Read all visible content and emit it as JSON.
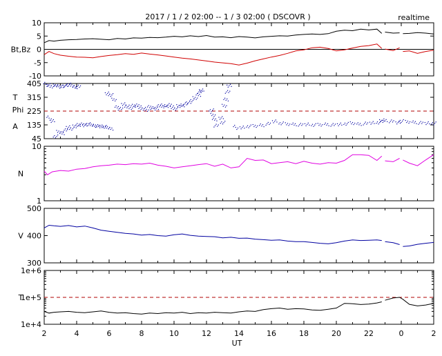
{
  "header": {
    "title": "2017 / 1 / 2  02:00 -- 1 / 3  02:00 ( DSCOVR )",
    "mode": "realtime"
  },
  "xaxis": {
    "label": "UT",
    "range": [
      0,
      24
    ],
    "ticks": [
      {
        "t": 0,
        "label": "2"
      },
      {
        "t": 2,
        "label": "4"
      },
      {
        "t": 4,
        "label": "6"
      },
      {
        "t": 6,
        "label": "8"
      },
      {
        "t": 8,
        "label": "10"
      },
      {
        "t": 10,
        "label": "12"
      },
      {
        "t": 12,
        "label": "14"
      },
      {
        "t": 14,
        "label": "16"
      },
      {
        "t": 16,
        "label": "18"
      },
      {
        "t": 18,
        "label": "20"
      },
      {
        "t": 20,
        "label": "22"
      },
      {
        "t": 22,
        "label": "0"
      },
      {
        "t": 24,
        "label": "2"
      }
    ]
  },
  "colors": {
    "bt": "#000000",
    "bz": "#d00000",
    "theta": "#0000a0",
    "phi": "#0000a0",
    "density": "#e000e0",
    "speed": "#0000a0",
    "temperature": "#00d000",
    "reference": "#b00000"
  },
  "chart_data": [
    {
      "id": "mag",
      "type": "line",
      "ylabel": "Bt,Bz",
      "ylim": [
        -10,
        10
      ],
      "ticks": [
        {
          "v": 10,
          "label": "10"
        },
        {
          "v": 5,
          "label": "5"
        },
        {
          "v": 0,
          "label": "0"
        },
        {
          "v": -5,
          "label": "-5"
        },
        {
          "v": -10,
          "label": "-10"
        }
      ],
      "zero_line": 0,
      "gaps": [
        [
          20.8,
          21.0
        ],
        [
          21.9,
          22.1
        ]
      ],
      "series": [
        {
          "key": "bt",
          "x": [
            0,
            0.3,
            0.6,
            1,
            1.5,
            2,
            2.5,
            3,
            3.5,
            4,
            4.5,
            5,
            5.5,
            6,
            6.5,
            7,
            7.5,
            8,
            8.5,
            9,
            9.5,
            10,
            10.5,
            11,
            11.5,
            12,
            12.5,
            13,
            13.5,
            14,
            14.5,
            15,
            15.5,
            16,
            16.5,
            17,
            17.5,
            18,
            18.5,
            19,
            19.5,
            20,
            20.5,
            20.8,
            21.0,
            21.5,
            21.9,
            22.1,
            22.5,
            23,
            23.5,
            24
          ],
          "y": [
            2.5,
            3.3,
            3.1,
            3.4,
            3.6,
            3.7,
            3.9,
            4.0,
            3.8,
            3.6,
            4.1,
            3.9,
            4.3,
            4.2,
            4.5,
            4.4,
            4.6,
            4.9,
            4.7,
            5.1,
            4.8,
            5.2,
            4.6,
            4.7,
            4.4,
            4.8,
            4.6,
            4.3,
            4.7,
            4.9,
            5.1,
            5.0,
            5.4,
            5.6,
            5.8,
            5.6,
            5.9,
            6.8,
            7.2,
            7.0,
            7.6,
            7.3,
            7.6,
            6.0,
            6.5,
            6.1,
            6.2,
            5.9,
            6.0,
            6.3,
            6.1,
            5.8
          ]
        },
        {
          "key": "bz",
          "x": [
            0,
            0.3,
            0.6,
            1,
            1.5,
            2,
            2.5,
            3,
            3.5,
            4,
            4.5,
            5,
            5.5,
            6,
            6.5,
            7,
            7.5,
            8,
            8.5,
            9,
            9.5,
            10,
            10.5,
            11,
            11.5,
            12,
            12.5,
            13,
            13.5,
            14,
            14.5,
            15,
            15.5,
            16,
            16.5,
            17,
            17.5,
            18,
            18.5,
            19,
            19.5,
            20,
            20.5,
            20.8,
            21.0,
            21.5,
            21.9,
            22.1,
            22.5,
            23,
            23.5,
            24
          ],
          "y": [
            -2,
            -0.8,
            -1.6,
            -2.2,
            -2.6,
            -2.9,
            -3.0,
            -3.2,
            -2.7,
            -2.3,
            -2.0,
            -1.6,
            -1.9,
            -1.4,
            -1.8,
            -2.1,
            -2.5,
            -2.9,
            -3.3,
            -3.6,
            -4.0,
            -4.4,
            -4.8,
            -5.1,
            -5.4,
            -5.9,
            -5.2,
            -4.3,
            -3.6,
            -2.9,
            -2.3,
            -1.5,
            -0.6,
            -0.2,
            0.6,
            0.8,
            0.3,
            -0.6,
            -0.2,
            0.5,
            1.1,
            1.4,
            2.0,
            0.3,
            0.1,
            -0.5,
            0.6,
            -0.8,
            -0.6,
            -1.5,
            -0.8,
            -0.3
          ]
        }
      ]
    },
    {
      "id": "angles",
      "type": "scatter",
      "ylabel_lines": [
        "T",
        "Phi",
        "A"
      ],
      "ylim": [
        45,
        405
      ],
      "ticks": [
        {
          "v": 405,
          "label": "405"
        },
        {
          "v": 315,
          "label": "315"
        },
        {
          "v": 225,
          "label": "225"
        },
        {
          "v": 135,
          "label": "135"
        },
        {
          "v": 45,
          "label": "45"
        }
      ],
      "reference_line": 225,
      "series": [
        {
          "key": "phi_early",
          "x": [
            0.1,
            0.3,
            0.5,
            0.7,
            0.9,
            1.1,
            1.3,
            1.5,
            1.7,
            1.9,
            2.1,
            3.9,
            4.1,
            4.3,
            4.5,
            4.7,
            4.9,
            5.1,
            5.3,
            5.5,
            5.7,
            5.9,
            6.1,
            6.3,
            6.5,
            6.7,
            6.9,
            7.1,
            7.3,
            7.5,
            7.7,
            7.9,
            8.1,
            8.3,
            8.5,
            8.7,
            8.9,
            9.1,
            9.3,
            9.5,
            9.6,
            9.7,
            10.3,
            10.4,
            10.5,
            10.6,
            10.9,
            11.0,
            11.1,
            11.2,
            11.3,
            11.4
          ],
          "y": [
            390,
            395,
            385,
            392,
            388,
            383,
            390,
            398,
            392,
            380,
            385,
            340,
            330,
            300,
            250,
            240,
            270,
            255,
            245,
            260,
            262,
            250,
            240,
            232,
            252,
            245,
            240,
            262,
            255,
            258,
            265,
            250,
            240,
            258,
            262,
            270,
            280,
            295,
            310,
            330,
            350,
            360,
            230,
            200,
            170,
            130,
            180,
            150,
            260,
            300,
            350,
            390
          ]
        },
        {
          "key": "phi_late",
          "x": [
            11.8,
            12.2,
            12.6,
            13.0,
            13.4,
            13.8,
            14.2,
            14.6,
            15.0,
            15.4,
            15.8,
            16.2,
            16.6,
            17.0,
            17.4,
            17.8,
            18.2,
            18.6,
            19.0,
            19.4,
            19.8,
            20.2,
            20.6,
            20.8,
            21.0,
            21.4,
            21.8,
            22.0,
            22.4,
            22.8,
            23.2,
            23.6,
            24.0
          ],
          "y": [
            110,
            118,
            125,
            128,
            132,
            142,
            158,
            145,
            140,
            138,
            136,
            138,
            134,
            136,
            138,
            135,
            138,
            142,
            146,
            140,
            144,
            148,
            150,
            160,
            165,
            158,
            150,
            160,
            155,
            152,
            148,
            146,
            145
          ]
        },
        {
          "key": "theta",
          "x": [
            0.3,
            0.5,
            0.7,
            0.9,
            1.1,
            1.3,
            1.5,
            1.7,
            1.9,
            2.1,
            2.3,
            2.5,
            2.7,
            2.9,
            3.1,
            3.3,
            3.5,
            3.7,
            3.9,
            4.1
          ],
          "y": [
            170,
            160,
            60,
            90,
            80,
            100,
            120,
            110,
            125,
            135,
            138,
            132,
            140,
            135,
            130,
            128,
            125,
            122,
            118,
            110
          ]
        }
      ]
    },
    {
      "id": "density",
      "type": "line",
      "ylabel": "N",
      "ylim": [
        1,
        10
      ],
      "scale": "log",
      "ticks": [
        {
          "v": 10,
          "label": "10"
        },
        {
          "v": 1,
          "label": "1"
        }
      ],
      "gaps": [
        [
          20.8,
          21.0
        ],
        [
          21.9,
          22.1
        ]
      ],
      "series": [
        {
          "key": "n",
          "x": [
            0,
            0.2,
            0.5,
            1,
            1.5,
            2,
            2.5,
            3,
            3.5,
            4,
            4.5,
            5,
            5.5,
            6,
            6.5,
            7,
            7.5,
            8,
            8.5,
            9,
            9.5,
            10,
            10.5,
            11,
            11.5,
            12,
            12.5,
            13,
            13.5,
            14,
            14.5,
            15,
            15.5,
            16,
            16.5,
            17,
            17.5,
            18,
            18.5,
            19,
            19.5,
            20,
            20.5,
            20.8,
            21.0,
            21.5,
            21.9,
            22.1,
            22.5,
            23,
            23.5,
            24
          ],
          "y": [
            3.5,
            3.0,
            3.4,
            3.6,
            3.5,
            3.8,
            3.9,
            4.2,
            4.4,
            4.5,
            4.7,
            4.6,
            4.8,
            4.7,
            4.9,
            4.5,
            4.3,
            4.0,
            4.2,
            4.4,
            4.6,
            4.8,
            4.3,
            4.7,
            4.0,
            4.2,
            6.0,
            5.5,
            5.6,
            4.8,
            5.0,
            5.2,
            4.8,
            5.3,
            4.9,
            4.7,
            5.0,
            4.9,
            5.5,
            7.0,
            7.0,
            6.8,
            5.5,
            6.6,
            5.4,
            5.2,
            6.0,
            5.6,
            4.9,
            4.4,
            5.6,
            7.0
          ]
        }
      ]
    },
    {
      "id": "speed",
      "type": "line",
      "ylabel": "V",
      "ylim": [
        300,
        500
      ],
      "ticks": [
        {
          "v": 500,
          "label": "500"
        },
        {
          "v": 400,
          "label": "400"
        },
        {
          "v": 300,
          "label": "300"
        }
      ],
      "gaps": [
        [
          20.8,
          21.0
        ],
        [
          21.9,
          22.1
        ]
      ],
      "series": [
        {
          "key": "v",
          "x": [
            0,
            0.3,
            0.6,
            1,
            1.5,
            2,
            2.5,
            3,
            3.5,
            4,
            4.5,
            5,
            5.5,
            6,
            6.5,
            7,
            7.5,
            8,
            8.5,
            9,
            9.5,
            10,
            10.5,
            11,
            11.5,
            12,
            12.5,
            13,
            13.5,
            14,
            14.5,
            15,
            15.5,
            16,
            16.5,
            17,
            17.5,
            18,
            18.5,
            19,
            19.5,
            20,
            20.5,
            20.8,
            21.0,
            21.5,
            21.9,
            22.1,
            22.5,
            23,
            23.5,
            24
          ],
          "y": [
            428,
            438,
            436,
            434,
            437,
            432,
            435,
            428,
            420,
            416,
            412,
            408,
            406,
            402,
            404,
            400,
            398,
            403,
            406,
            401,
            398,
            397,
            396,
            392,
            394,
            390,
            391,
            387,
            385,
            383,
            384,
            380,
            378,
            378,
            375,
            372,
            370,
            374,
            380,
            384,
            382,
            383,
            384,
            382,
            378,
            374,
            367,
            360,
            362,
            368,
            372,
            375
          ]
        }
      ]
    },
    {
      "id": "temperature",
      "type": "line",
      "ylabel": "T",
      "ylim": [
        10000,
        1000000
      ],
      "scale": "log",
      "ticks": [
        {
          "v": 1000000,
          "label": "1e+6"
        },
        {
          "v": 100000,
          "label": "1e+5"
        },
        {
          "v": 10000,
          "label": "1e+4"
        }
      ],
      "reference_line": 100000,
      "gaps": [
        [
          20.8,
          21.0
        ]
      ],
      "series": [
        {
          "key": "temp",
          "x": [
            0,
            0.3,
            0.6,
            1,
            1.5,
            2,
            2.5,
            3,
            3.5,
            4,
            4.5,
            5,
            5.5,
            6,
            6.5,
            7,
            7.5,
            8,
            8.5,
            9,
            9.5,
            10,
            10.5,
            11,
            11.5,
            12,
            12.5,
            13,
            13.5,
            14,
            14.5,
            15,
            15.5,
            16,
            16.5,
            17,
            17.5,
            18,
            18.5,
            19,
            19.5,
            20,
            20.5,
            20.8,
            21.0,
            21.5,
            21.9,
            22.1,
            22.5,
            23,
            23.5,
            24
          ],
          "y": [
            30000,
            26000,
            28000,
            29000,
            30000,
            28000,
            27000,
            29000,
            31000,
            28000,
            26000,
            27000,
            25000,
            24000,
            26000,
            25000,
            27000,
            26000,
            28000,
            25000,
            27000,
            26000,
            28000,
            27000,
            26000,
            29000,
            31000,
            30000,
            35000,
            38000,
            40000,
            36000,
            38000,
            37000,
            34000,
            33000,
            36000,
            40000,
            60000,
            58000,
            54000,
            56000,
            62000,
            68000,
            78000,
            95000,
            100000,
            85000,
            55000,
            48000,
            52000,
            60000
          ]
        }
      ]
    }
  ]
}
